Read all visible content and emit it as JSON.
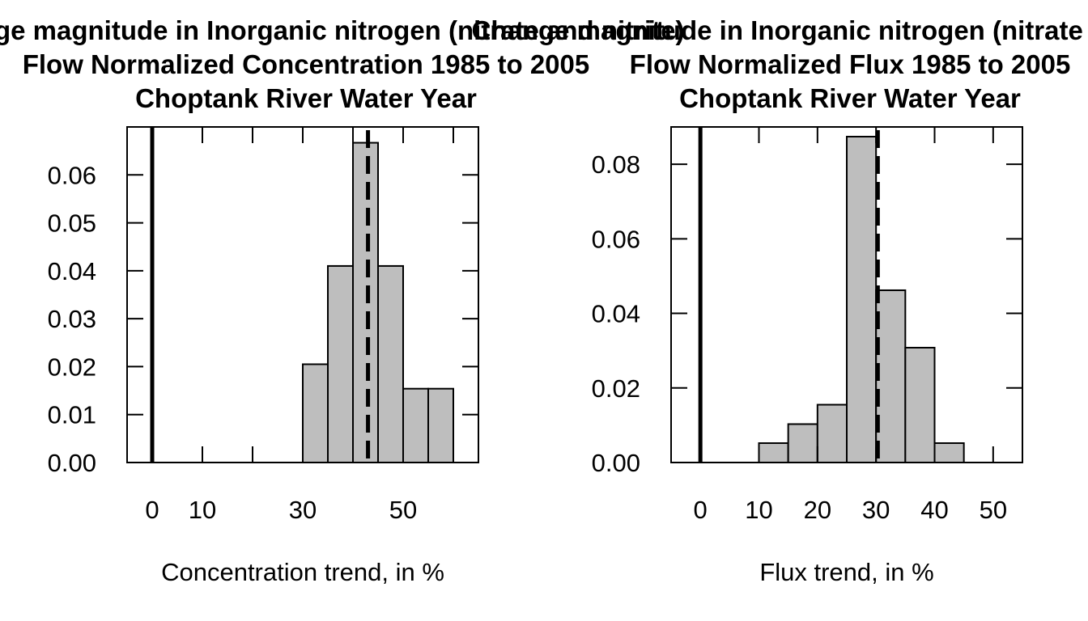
{
  "chart_data": [
    {
      "type": "bar",
      "title_lines": [
        "Change magnitude in Inorganic nitrogen (nitrate and nitrite)",
        "Flow Normalized Concentration 1985 to 2005",
        "Choptank River Water Year"
      ],
      "xlabel": "Concentration trend, in %",
      "ylabel": "",
      "xlim": [
        -5,
        65
      ],
      "ylim": [
        0,
        0.07
      ],
      "x_ticks": [
        0,
        10,
        30,
        50
      ],
      "x_tick_marks": [
        0,
        10,
        20,
        30,
        40,
        50,
        60
      ],
      "y_ticks": [
        0.0,
        0.01,
        0.02,
        0.03,
        0.04,
        0.05,
        0.06
      ],
      "y_tick_labels": [
        "0.00",
        "0.01",
        "0.02",
        "0.03",
        "0.04",
        "0.05",
        "0.06"
      ],
      "bins": [
        {
          "x0": 30,
          "x1": 35,
          "density": 0.0205
        },
        {
          "x0": 35,
          "x1": 40,
          "density": 0.041
        },
        {
          "x0": 40,
          "x1": 45,
          "density": 0.0667
        },
        {
          "x0": 45,
          "x1": 50,
          "density": 0.041
        },
        {
          "x0": 50,
          "x1": 55,
          "density": 0.0154
        },
        {
          "x0": 55,
          "x1": 60,
          "density": 0.0154
        }
      ],
      "zero_line": 0,
      "estimate_line": 43,
      "bar_color": "#bebebe"
    },
    {
      "type": "bar",
      "title_lines": [
        "Change magnitude in Inorganic nitrogen (nitrate and nitrite)",
        "Flow Normalized Flux 1985 to 2005",
        "Choptank River Water Year"
      ],
      "xlabel": "Flux trend, in %",
      "ylabel": "",
      "xlim": [
        -5,
        55
      ],
      "ylim": [
        0,
        0.09
      ],
      "x_ticks": [
        0,
        10,
        20,
        30,
        40,
        50
      ],
      "x_tick_marks": [
        0,
        10,
        20,
        30,
        40,
        50
      ],
      "y_ticks": [
        0.0,
        0.02,
        0.04,
        0.06,
        0.08
      ],
      "y_tick_labels": [
        "0.00",
        "0.02",
        "0.04",
        "0.06",
        "0.08"
      ],
      "bins": [
        {
          "x0": 10,
          "x1": 15,
          "density": 0.0052
        },
        {
          "x0": 15,
          "x1": 20,
          "density": 0.0103
        },
        {
          "x0": 20,
          "x1": 25,
          "density": 0.0155
        },
        {
          "x0": 25,
          "x1": 30,
          "density": 0.0874
        },
        {
          "x0": 30,
          "x1": 35,
          "density": 0.0462
        },
        {
          "x0": 35,
          "x1": 40,
          "density": 0.0308
        },
        {
          "x0": 40,
          "x1": 45,
          "density": 0.0052
        }
      ],
      "zero_line": 0,
      "estimate_line": 30.3,
      "bar_color": "#bebebe"
    }
  ]
}
